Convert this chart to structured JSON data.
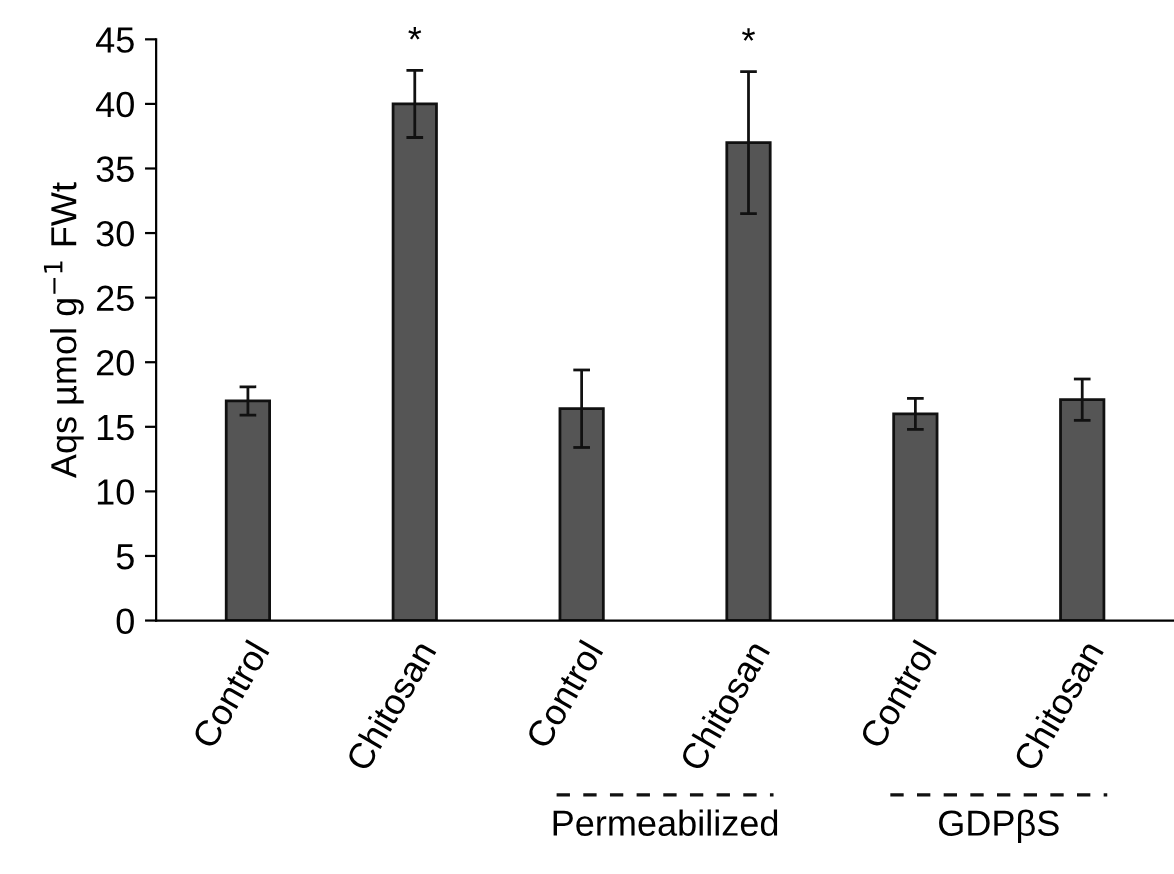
{
  "chart_data": {
    "type": "bar",
    "ylabel": "Aqs µmol g$^{−1}$ FWt",
    "categories": [
      "Control",
      "Chitosan",
      "Control",
      "Chitosan",
      "Control",
      "Chitosan"
    ],
    "values": [
      17,
      40,
      16.4,
      37,
      16,
      17.1
    ],
    "errors": [
      1.1,
      2.6,
      3,
      5.5,
      1.2,
      1.6
    ],
    "value_labels": [
      null,
      "*",
      null,
      "*",
      null,
      null
    ],
    "color": "#555555",
    "ylim": [
      0,
      45
    ],
    "yticks": [
      0,
      5,
      10,
      15,
      20,
      25,
      30,
      35,
      40,
      45
    ],
    "grid": false,
    "annotations": [
      "Permeabilized",
      "GDPβS"
    ]
  }
}
